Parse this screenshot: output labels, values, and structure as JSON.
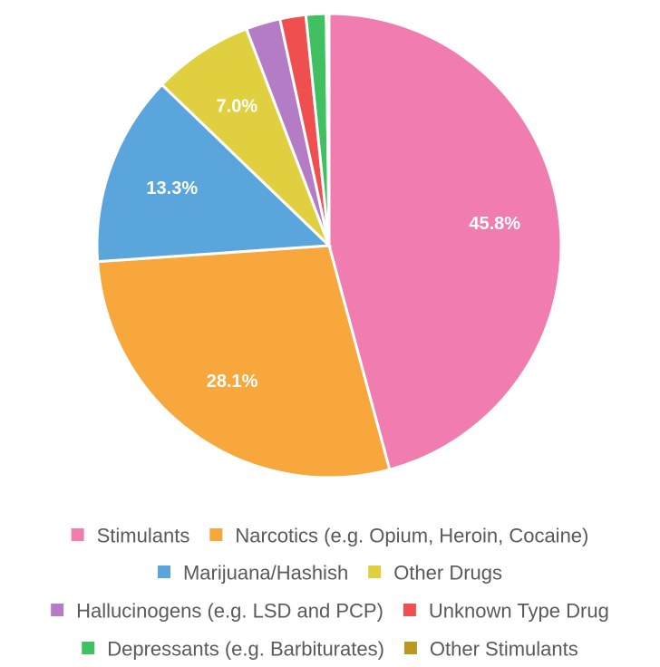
{
  "chart_data": {
    "type": "pie",
    "title": "",
    "categories": [
      "Stimulants",
      "Narcotics (e.g. Opium, Heroin, Cocaine)",
      "Marijuana/Hashish",
      "Other Drugs",
      "Hallucinogens (e.g. LSD and PCP)",
      "Unknown Type Drug",
      "Depressants (e.g. Barbiturates)",
      "Other Stimulants"
    ],
    "values": [
      45.8,
      28.1,
      13.3,
      7.0,
      2.4,
      1.8,
      1.4,
      0.2
    ],
    "data_labels": [
      "45.8%",
      "28.1%",
      "13.3%",
      "7.0%",
      "",
      "",
      "",
      ""
    ],
    "colors": [
      "#f07cb0",
      "#f8a73c",
      "#5aa6dc",
      "#e0d040",
      "#b47cc4",
      "#ef4f4f",
      "#40c060",
      "#b89820"
    ],
    "legend_position": "bottom"
  }
}
